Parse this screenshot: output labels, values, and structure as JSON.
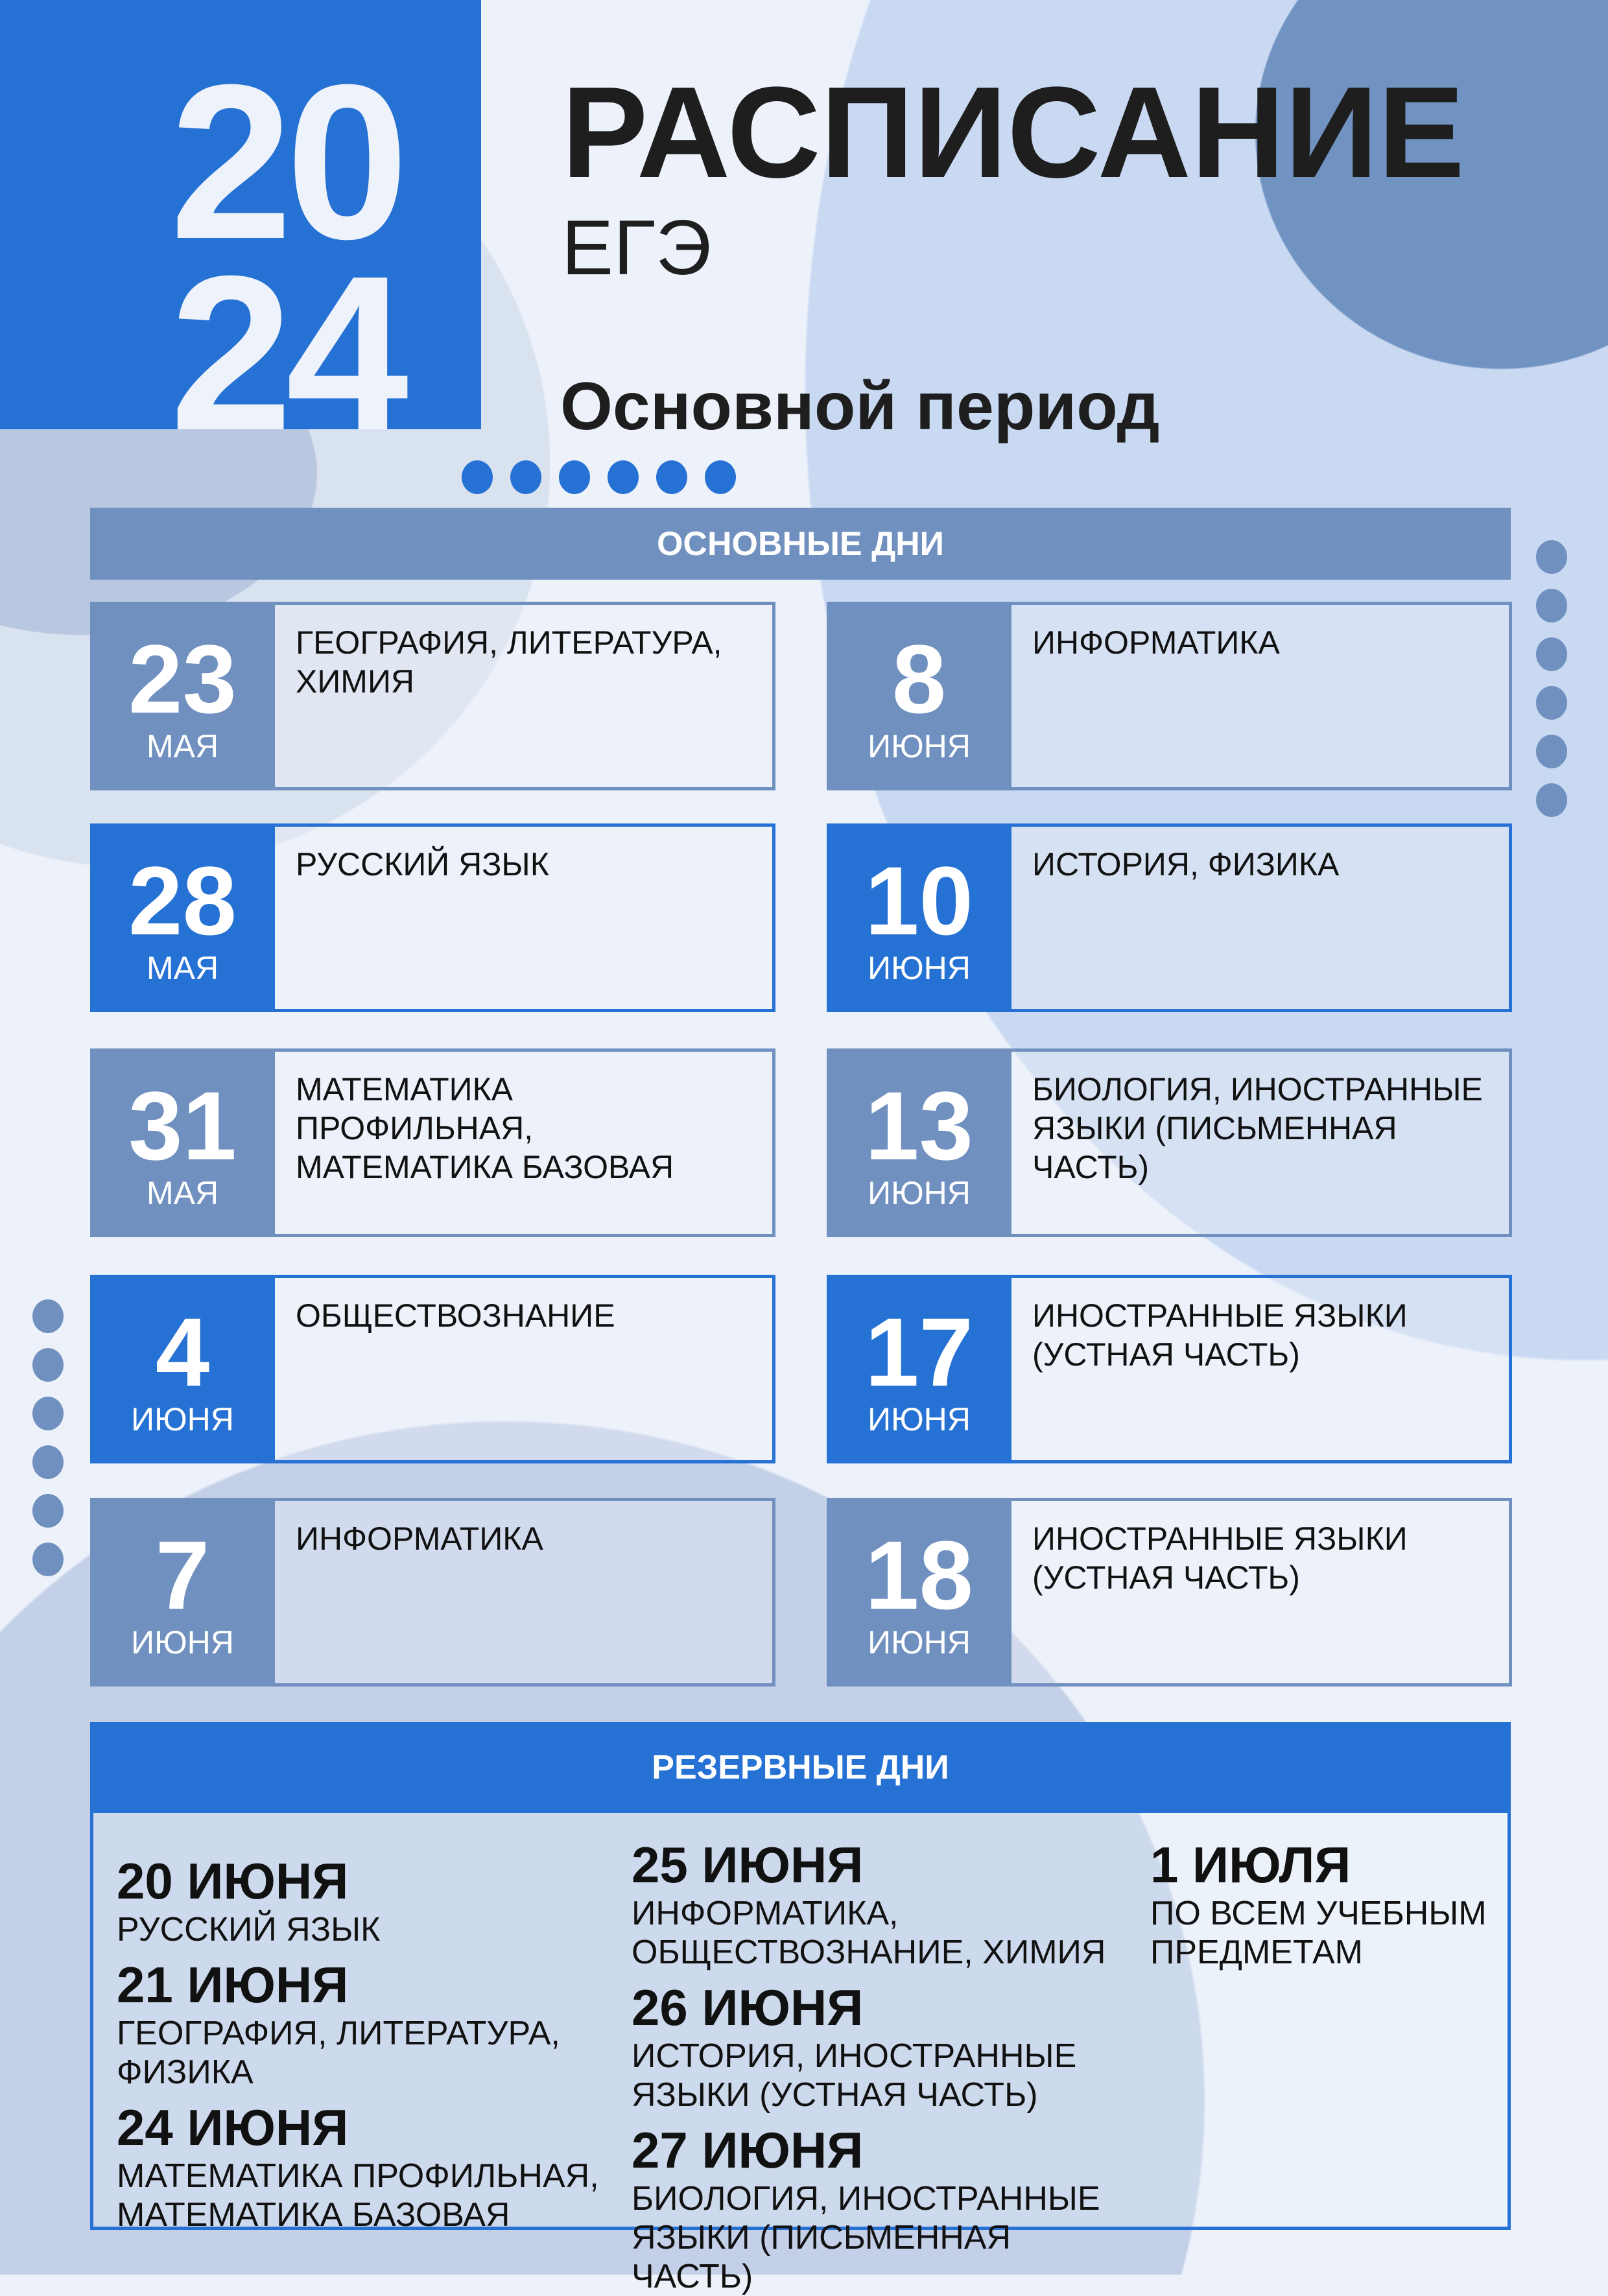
{
  "colors": {
    "blue": "#2671d4",
    "grey_blue": "#7090bf",
    "background": "#edf2fa"
  },
  "header": {
    "year_top": "20",
    "year_bottom": "24",
    "title": "РАСПИСАНИЕ",
    "subtitle": "ЕГЭ",
    "period": "Основной период"
  },
  "main_days": {
    "label": "ОСНОВНЫЕ ДНИ",
    "items": [
      {
        "day": "23",
        "month": "МАЯ",
        "subjects": "ГЕОГРАФИЯ, ЛИТЕРАТУРА, ХИМИЯ",
        "style": "grey"
      },
      {
        "day": "8",
        "month": "ИЮНЯ",
        "subjects": "ИНФОРМАТИКА",
        "style": "grey"
      },
      {
        "day": "28",
        "month": "МАЯ",
        "subjects": "РУССКИЙ ЯЗЫК",
        "style": "blue"
      },
      {
        "day": "10",
        "month": "ИЮНЯ",
        "subjects": "ИСТОРИЯ, ФИЗИКА",
        "style": "blue"
      },
      {
        "day": "31",
        "month": "МАЯ",
        "subjects": "МАТЕМАТИКА ПРОФИЛЬНАЯ, МАТЕМАТИКА БАЗОВАЯ",
        "style": "grey"
      },
      {
        "day": "13",
        "month": "ИЮНЯ",
        "subjects": "БИОЛОГИЯ, ИНОСТРАННЫЕ ЯЗЫКИ (ПИСЬМЕННАЯ ЧАСТЬ)",
        "style": "grey"
      },
      {
        "day": "4",
        "month": "ИЮНЯ",
        "subjects": "ОБЩЕСТВОЗНАНИЕ",
        "style": "blue"
      },
      {
        "day": "17",
        "month": "ИЮНЯ",
        "subjects": "ИНОСТРАННЫЕ ЯЗЫКИ (УСТНАЯ ЧАСТЬ)",
        "style": "blue"
      },
      {
        "day": "7",
        "month": "ИЮНЯ",
        "subjects": "ИНФОРМАТИКА",
        "style": "grey"
      },
      {
        "day": "18",
        "month": "ИЮНЯ",
        "subjects": "ИНОСТРАННЫЕ ЯЗЫКИ (УСТНАЯ ЧАСТЬ)",
        "style": "grey"
      }
    ]
  },
  "reserve_days": {
    "label": "РЕЗЕРВНЫЕ ДНИ",
    "columns": [
      [
        {
          "date": "20 ИЮНЯ",
          "subjects": "РУССКИЙ ЯЗЫК"
        },
        {
          "date": "21 ИЮНЯ",
          "subjects": "ГЕОГРАФИЯ, ЛИТЕРАТУРА, ФИЗИКА"
        },
        {
          "date": "24 ИЮНЯ",
          "subjects": "МАТЕМАТИКА ПРОФИЛЬНАЯ, МАТЕМАТИКА БАЗОВАЯ"
        }
      ],
      [
        {
          "date": "25 ИЮНЯ",
          "subjects": "ИНФОРМАТИКА, ОБЩЕСТВОЗНАНИЕ, ХИМИЯ"
        },
        {
          "date": "26 ИЮНЯ",
          "subjects": "ИСТОРИЯ, ИНОСТРАННЫЕ ЯЗЫКИ (УСТНАЯ ЧАСТЬ)"
        },
        {
          "date": "27 ИЮНЯ",
          "subjects": "БИОЛОГИЯ, ИНОСТРАННЫЕ ЯЗЫКИ (ПИСЬМЕННАЯ ЧАСТЬ)"
        }
      ],
      [
        {
          "date": "1 ИЮЛЯ",
          "subjects": "ПО ВСЕМ УЧЕБНЫМ ПРЕДМЕТАМ"
        }
      ]
    ]
  }
}
